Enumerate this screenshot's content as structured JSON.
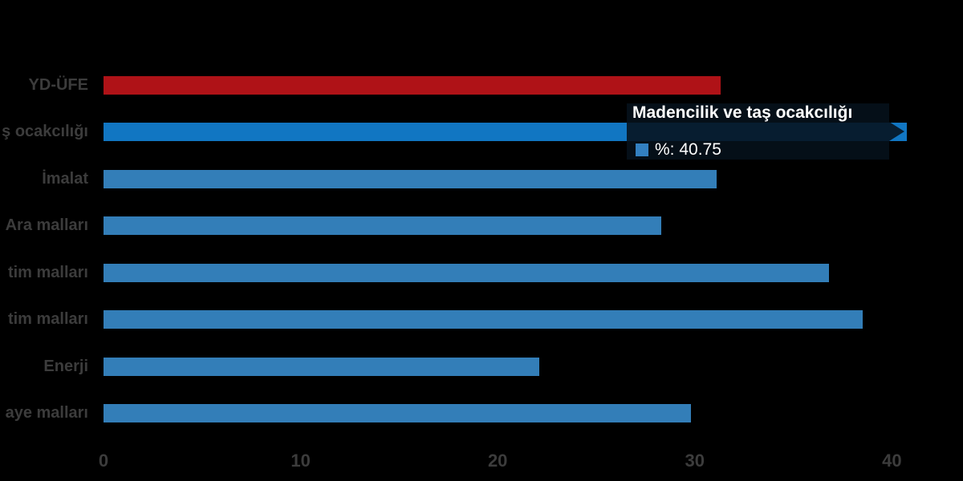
{
  "chart_data": {
    "type": "bar",
    "orientation": "horizontal",
    "title": "",
    "xlabel": "",
    "ylabel": "",
    "categories": [
      "YD-ÜFE",
      "ş ocakcılığı",
      "İmalat",
      "Ara malları",
      "tim malları",
      "tim malları",
      "Enerji",
      "aye malları"
    ],
    "values": [
      31.3,
      40.75,
      31.1,
      28.3,
      36.8,
      38.5,
      22.1,
      29.8
    ],
    "bar_colors": [
      "#af1217",
      "#1176c2",
      "#337eb8",
      "#337eb8",
      "#337eb8",
      "#337eb8",
      "#337eb8",
      "#337eb8"
    ],
    "xticks": [
      0,
      10,
      20,
      30,
      40
    ],
    "xlim": [
      0,
      43.5
    ],
    "grid": false,
    "legend": "none",
    "hovered_category_index": 1
  },
  "tooltip": {
    "title": "Madencilik ve taş ocakcılığı",
    "value_text": "%: 40.75",
    "value": 40.75,
    "marker_color": "#3380c0"
  },
  "colors": {
    "background": "#000000",
    "axis_text": "#3c3c3c",
    "bar_default": "#337eb8",
    "bar_hover": "#1176c2",
    "bar_red": "#af1217",
    "tooltip_bg": "rgba(6,17,27,0.88)",
    "tooltip_text": "#ffffff"
  }
}
